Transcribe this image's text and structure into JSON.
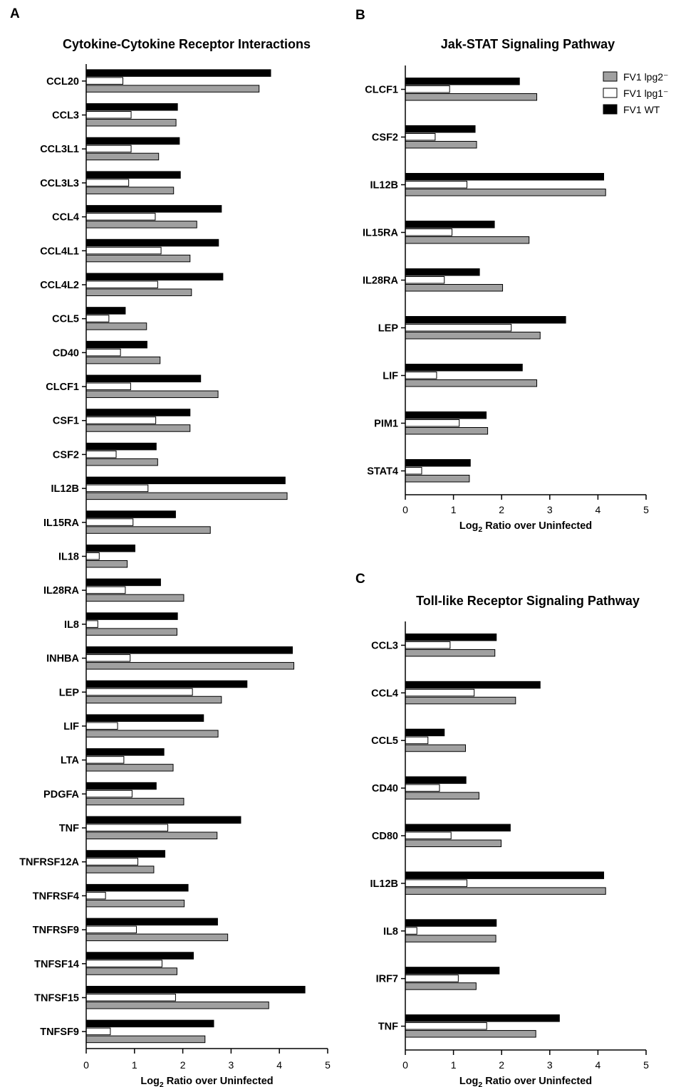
{
  "series_colors": {
    "wt": "#000000",
    "lpg1": "#ffffff",
    "lpg2": "#a0a0a0"
  },
  "legend": [
    "FV1 lpg2⁻",
    "FV1 lpg1⁻",
    "FV1 WT"
  ],
  "chart_data": [
    {
      "id": "A",
      "type": "bar",
      "orientation": "horizontal",
      "letter": "A",
      "title": "Cytokine-Cytokine Receptor Interactions",
      "xlabel": "Log2 Ratio over Uninfected",
      "xlim": [
        0,
        5
      ],
      "xticks": [
        0,
        1,
        2,
        3,
        4,
        5
      ],
      "categories": [
        "CCL20",
        "CCL3",
        "CCL3L1",
        "CCL3L3",
        "CCL4",
        "CCL4L1",
        "CCL4L2",
        "CCL5",
        "CD40",
        "CLCF1",
        "CSF1",
        "CSF2",
        "IL12B",
        "IL15RA",
        "IL18",
        "IL28RA",
        "IL8",
        "INHBA",
        "LEP",
        "LIF",
        "LTA",
        "PDGFA",
        "TNF",
        "TNFRSF12A",
        "TNFRSF4",
        "TNFRSF9",
        "TNFSF14",
        "TNFSF15",
        "TNFSF9"
      ],
      "series": [
        {
          "name": "FV1 WT",
          "key": "wt",
          "values": [
            3.82,
            1.89,
            1.93,
            1.95,
            2.8,
            2.74,
            2.83,
            0.81,
            1.26,
            2.37,
            2.15,
            1.45,
            4.12,
            1.85,
            1.01,
            1.54,
            1.89,
            4.27,
            3.33,
            2.43,
            1.61,
            1.45,
            3.2,
            1.63,
            2.11,
            2.72,
            2.22,
            4.53,
            2.64
          ]
        },
        {
          "name": "FV1 lpg1⁻",
          "key": "lpg1",
          "values": [
            0.76,
            0.93,
            0.93,
            0.88,
            1.43,
            1.55,
            1.48,
            0.47,
            0.71,
            0.92,
            1.44,
            0.62,
            1.28,
            0.97,
            0.27,
            0.81,
            0.24,
            0.91,
            2.2,
            0.65,
            0.78,
            0.95,
            1.69,
            1.07,
            0.4,
            1.04,
            1.57,
            1.85,
            0.5
          ]
        },
        {
          "name": "FV1 lpg2⁻",
          "key": "lpg2",
          "values": [
            3.58,
            1.86,
            1.5,
            1.81,
            2.29,
            2.15,
            2.18,
            1.25,
            1.53,
            2.73,
            2.15,
            1.48,
            4.16,
            2.57,
            0.85,
            2.02,
            1.88,
            4.3,
            2.8,
            2.73,
            1.8,
            2.02,
            2.71,
            1.4,
            2.03,
            2.93,
            1.88,
            3.78,
            2.46
          ]
        }
      ]
    },
    {
      "id": "B",
      "type": "bar",
      "orientation": "horizontal",
      "letter": "B",
      "title": "Jak-STAT Signaling Pathway",
      "xlabel": "Log2 Ratio over Uninfected",
      "xlim": [
        0,
        5
      ],
      "xticks": [
        0,
        1,
        2,
        3,
        4,
        5
      ],
      "legend_position": "top-right",
      "categories": [
        "CLCF1",
        "CSF2",
        "IL12B",
        "IL15RA",
        "IL28RA",
        "LEP",
        "LIF",
        "PIM1",
        "STAT4"
      ],
      "series": [
        {
          "name": "FV1 WT",
          "key": "wt",
          "values": [
            2.37,
            1.45,
            4.12,
            1.85,
            1.54,
            3.33,
            2.43,
            1.68,
            1.35
          ]
        },
        {
          "name": "FV1 lpg1⁻",
          "key": "lpg1",
          "values": [
            0.92,
            0.62,
            1.28,
            0.97,
            0.81,
            2.2,
            0.65,
            1.12,
            0.34
          ]
        },
        {
          "name": "FV1 lpg2⁻",
          "key": "lpg2",
          "values": [
            2.73,
            1.48,
            4.16,
            2.57,
            2.02,
            2.8,
            2.73,
            1.71,
            1.33
          ]
        }
      ]
    },
    {
      "id": "C",
      "type": "bar",
      "orientation": "horizontal",
      "letter": "C",
      "title": "Toll-like Receptor Signaling Pathway",
      "xlabel": "Log2 Ratio over Uninfected",
      "xlim": [
        0,
        5
      ],
      "xticks": [
        0,
        1,
        2,
        3,
        4,
        5
      ],
      "categories": [
        "CCL3",
        "CCL4",
        "CCL5",
        "CD40",
        "CD80",
        "IL12B",
        "IL8",
        "IRF7",
        "TNF"
      ],
      "series": [
        {
          "name": "FV1 WT",
          "key": "wt",
          "values": [
            1.89,
            2.8,
            0.81,
            1.26,
            2.18,
            4.12,
            1.89,
            1.95,
            3.2
          ]
        },
        {
          "name": "FV1 lpg1⁻",
          "key": "lpg1",
          "values": [
            0.93,
            1.43,
            0.47,
            0.71,
            0.95,
            1.28,
            0.24,
            1.1,
            1.69
          ]
        },
        {
          "name": "FV1 lpg2⁻",
          "key": "lpg2",
          "values": [
            1.86,
            2.29,
            1.25,
            1.53,
            1.99,
            4.16,
            1.88,
            1.47,
            2.71
          ]
        }
      ]
    }
  ]
}
